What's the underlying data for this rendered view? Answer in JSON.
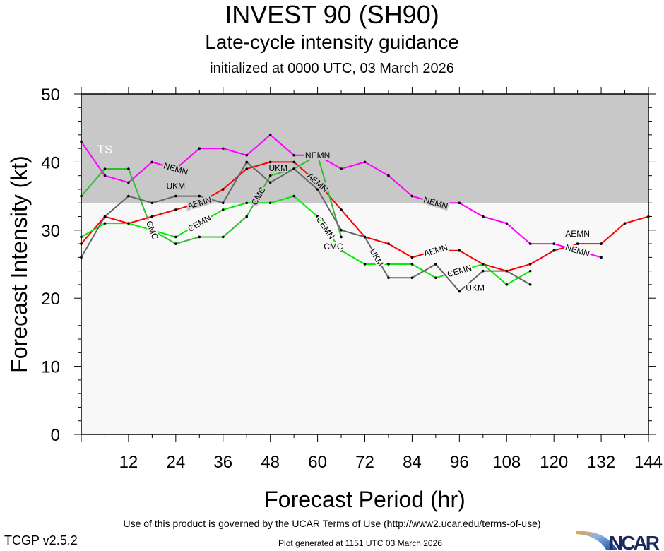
{
  "title": "INVEST 90 (SH90)",
  "subtitle": "Late-cycle intensity guidance",
  "init": "initialized at 0000 UTC, 03 March 2026",
  "footer": {
    "terms": "Use of this product is governed by the UCAR Terms of Use (http://www2.ucar.edu/terms-of-use)",
    "generated": "Plot generated at 1151 UTC   03 March 2026",
    "version": "TCGP v2.5.2",
    "logo": "NCAR"
  },
  "chart_data": {
    "type": "line",
    "xlabel": "Forecast Period (hr)",
    "ylabel": "Forecast Intensity (kt)",
    "xlim": [
      0,
      144
    ],
    "ylim": [
      0,
      50
    ],
    "xticks": [
      12,
      24,
      36,
      48,
      60,
      72,
      84,
      96,
      108,
      120,
      132,
      144
    ],
    "yticks": [
      0,
      10,
      20,
      30,
      40,
      50
    ],
    "bands": [
      {
        "label": "TS",
        "from": 34,
        "to": 50,
        "color": "#c8c8c8"
      }
    ],
    "background": "#f8f8f8",
    "series": [
      {
        "name": "NEMN",
        "color": "#ff00ff",
        "x": [
          0,
          6,
          12,
          18,
          24,
          30,
          36,
          42,
          48,
          54,
          60,
          66,
          72,
          78,
          84,
          90,
          96,
          102,
          108,
          114,
          120,
          126,
          132
        ],
        "values": [
          43,
          38,
          37,
          40,
          39,
          42,
          42,
          41,
          44,
          41,
          41,
          39,
          40,
          38,
          35,
          34,
          34,
          32,
          31,
          28,
          28,
          27,
          26
        ],
        "label_at": [
          24,
          60,
          90,
          126
        ]
      },
      {
        "name": "AEMN",
        "color": "#ff0000",
        "x": [
          0,
          6,
          12,
          18,
          24,
          30,
          36,
          42,
          48,
          54,
          60,
          66,
          72,
          78,
          84,
          90,
          96,
          102,
          108,
          114,
          120,
          126,
          132,
          138,
          144
        ],
        "values": [
          28,
          32,
          31,
          32,
          33,
          34,
          36,
          39,
          40,
          40,
          37,
          33,
          29,
          28,
          26,
          27,
          27,
          25,
          24,
          25,
          27,
          28,
          28,
          31,
          32
        ],
        "label_at": [
          30,
          60,
          90,
          126
        ]
      },
      {
        "name": "CEMN",
        "color": "#00ee00",
        "x": [
          0,
          6,
          12,
          18,
          24,
          30,
          36,
          42,
          48,
          54,
          60,
          66,
          72,
          78,
          84,
          90,
          96,
          102,
          108,
          114
        ],
        "values": [
          29,
          31,
          31,
          30,
          29,
          31,
          33,
          34,
          34,
          35,
          32,
          27,
          25,
          25,
          25,
          23,
          24,
          25,
          22,
          24
        ],
        "label_at": [
          30,
          62,
          96
        ]
      },
      {
        "name": "CMC",
        "color": "#33bb33",
        "x": [
          0,
          6,
          12,
          18,
          24,
          30,
          36,
          42,
          48,
          54,
          60,
          66
        ],
        "values": [
          35,
          39,
          39,
          30,
          28,
          29,
          29,
          32,
          38,
          39,
          41,
          29
        ],
        "label_at": [
          18,
          45,
          64
        ]
      },
      {
        "name": "UKM",
        "color": "#666666",
        "x": [
          0,
          6,
          12,
          18,
          24,
          30,
          36,
          42,
          48,
          54,
          60,
          66,
          72,
          78,
          84,
          90,
          96,
          102,
          108,
          114
        ],
        "values": [
          26,
          32,
          35,
          34,
          35,
          35,
          34,
          40,
          37,
          39,
          36,
          30,
          29,
          23,
          23,
          25,
          21,
          24,
          24,
          22
        ],
        "label_at": [
          24,
          50,
          75,
          100
        ]
      }
    ]
  }
}
